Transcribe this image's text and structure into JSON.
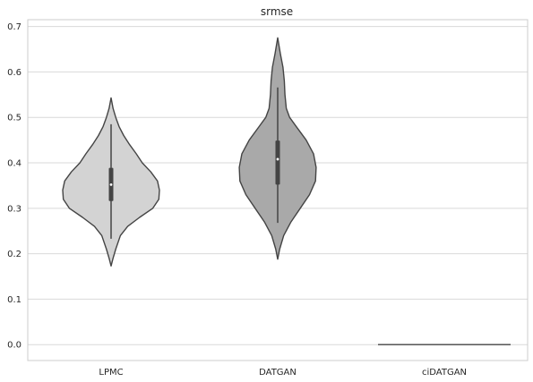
{
  "chart_data": {
    "type": "violin",
    "title": "srmse",
    "xlabel": "",
    "ylabel": "",
    "ylim": [
      -0.035,
      0.715
    ],
    "yticks": [
      0.0,
      0.1,
      0.2,
      0.3,
      0.4,
      0.5,
      0.6,
      0.7
    ],
    "ytick_labels": [
      "0.0",
      "0.1",
      "0.2",
      "0.3",
      "0.4",
      "0.5",
      "0.6",
      "0.7"
    ],
    "grid": true,
    "categories": [
      "LPMC",
      "DATGAN",
      "ciDATGAN"
    ],
    "violins": [
      {
        "category": "LPMC",
        "color": "#d3d3d3",
        "min": 0.173,
        "max": 0.543,
        "whisker_low": 0.233,
        "whisker_high": 0.485,
        "q1": 0.316,
        "median": 0.352,
        "q3": 0.389,
        "density": [
          [
            0.173,
            0.0
          ],
          [
            0.19,
            0.03
          ],
          [
            0.21,
            0.07
          ],
          [
            0.24,
            0.14
          ],
          [
            0.26,
            0.25
          ],
          [
            0.28,
            0.43
          ],
          [
            0.3,
            0.63
          ],
          [
            0.32,
            0.72
          ],
          [
            0.34,
            0.73
          ],
          [
            0.36,
            0.7
          ],
          [
            0.38,
            0.6
          ],
          [
            0.4,
            0.47
          ],
          [
            0.42,
            0.38
          ],
          [
            0.44,
            0.28
          ],
          [
            0.46,
            0.19
          ],
          [
            0.48,
            0.12
          ],
          [
            0.5,
            0.07
          ],
          [
            0.52,
            0.03
          ],
          [
            0.543,
            0.0
          ]
        ]
      },
      {
        "category": "DATGAN",
        "color": "#a9a9a9",
        "min": 0.188,
        "max": 0.675,
        "whisker_low": 0.268,
        "whisker_high": 0.566,
        "q1": 0.352,
        "median": 0.408,
        "q3": 0.449,
        "density": [
          [
            0.188,
            0.0
          ],
          [
            0.21,
            0.03
          ],
          [
            0.24,
            0.09
          ],
          [
            0.27,
            0.2
          ],
          [
            0.3,
            0.34
          ],
          [
            0.33,
            0.48
          ],
          [
            0.36,
            0.57
          ],
          [
            0.39,
            0.58
          ],
          [
            0.42,
            0.54
          ],
          [
            0.45,
            0.43
          ],
          [
            0.48,
            0.28
          ],
          [
            0.5,
            0.18
          ],
          [
            0.52,
            0.13
          ],
          [
            0.55,
            0.11
          ],
          [
            0.58,
            0.1
          ],
          [
            0.61,
            0.08
          ],
          [
            0.64,
            0.04
          ],
          [
            0.675,
            0.0
          ]
        ]
      },
      {
        "category": "ciDATGAN",
        "color": "#808080",
        "min": 0.0,
        "max": 0.0,
        "whisker_low": 0.0,
        "whisker_high": 0.0,
        "q1": 0.0,
        "median": 0.0,
        "q3": 0.0,
        "density": []
      }
    ]
  }
}
